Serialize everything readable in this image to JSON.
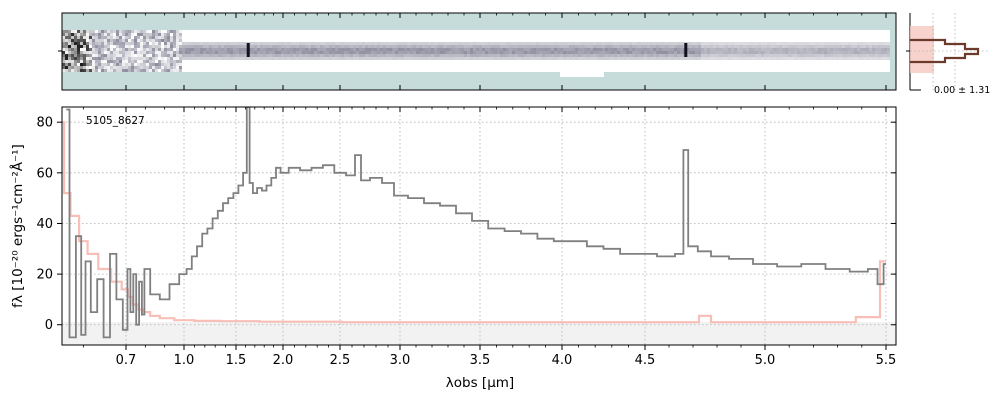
{
  "chart_data": [
    {
      "panel": "2d-spectrum",
      "type": "heatmap",
      "colors": {
        "background": "#c6dcda",
        "trace": "#2e2e4e",
        "noisy_edge": "#000000"
      },
      "emission_line_columns_um": [
        1.63,
        4.67
      ]
    },
    {
      "panel": "spatial-profile",
      "type": "line",
      "annotation": "0.00 ± 1.31",
      "colors": {
        "profile": "#6b3a2a",
        "fill": "#f6c8c0"
      }
    },
    {
      "panel": "1d-spectrum",
      "type": "line",
      "id_label": "5105_8627",
      "xlabel": "λobs [μm]",
      "ylabel": "fλ [10⁻²⁰ ergs⁻¹cm⁻²Å⁻¹]",
      "x_scale": "nonlinear (stretched at short wavelengths)",
      "xlim": [
        0.55,
        5.52
      ],
      "ylim": [
        -8,
        86
      ],
      "grid": true,
      "x_ticks": [
        "0.7",
        "1.0",
        "1.5",
        "2.0",
        "2.5",
        "3.0",
        "3.5",
        "4.0",
        "4.5",
        "5.0",
        "5.5"
      ],
      "y_ticks": [
        "0",
        "20",
        "40",
        "60",
        "80"
      ],
      "colors": {
        "flux": "#808080",
        "error": "#f6b8b0",
        "zero_band": "#f2f2f2"
      },
      "series": [
        {
          "name": "",
          "role": "flux",
          "x": [
            0.56,
            0.575,
            0.59,
            0.6,
            0.61,
            0.625,
            0.64,
            0.655,
            0.67,
            0.685,
            0.7,
            0.715,
            0.73,
            0.745,
            0.76,
            0.775,
            0.79,
            0.8,
            0.85,
            0.9,
            0.95,
            1.0,
            1.05,
            1.1,
            1.15,
            1.2,
            1.25,
            1.3,
            1.35,
            1.4,
            1.45,
            1.5,
            1.55,
            1.6,
            1.63,
            1.66,
            1.7,
            1.75,
            1.8,
            1.85,
            1.9,
            1.95,
            2.0,
            2.1,
            2.2,
            2.3,
            2.4,
            2.5,
            2.6,
            2.65,
            2.7,
            2.8,
            2.9,
            3.0,
            3.1,
            3.2,
            3.3,
            3.4,
            3.5,
            3.6,
            3.7,
            3.8,
            3.9,
            4.0,
            4.1,
            4.2,
            4.3,
            4.4,
            4.5,
            4.6,
            4.65,
            4.67,
            4.69,
            4.75,
            4.8,
            4.9,
            5.0,
            5.1,
            5.2,
            5.3,
            5.4,
            5.45,
            5.48,
            5.5
          ],
          "y": [
            85,
            -5,
            35,
            -4,
            25,
            5,
            18,
            -5,
            28,
            10,
            -2,
            22,
            5,
            20,
            0,
            17,
            4,
            22,
            12,
            10,
            16,
            20,
            22,
            27,
            31,
            36,
            38,
            42,
            45,
            48,
            50,
            52,
            55,
            60,
            86,
            56,
            52,
            54,
            53,
            55,
            58,
            62,
            60,
            62,
            61,
            62,
            63,
            60,
            59,
            67,
            57,
            58,
            56,
            51,
            50,
            48,
            47,
            44,
            41,
            38,
            37,
            36,
            34,
            33,
            33,
            31,
            30,
            28,
            28,
            27,
            28,
            69,
            31,
            29,
            27,
            26,
            24,
            23,
            24,
            22,
            21,
            22,
            16,
            24
          ]
        },
        {
          "name": "",
          "role": "error",
          "x": [
            0.55,
            0.56,
            0.58,
            0.6,
            0.62,
            0.65,
            0.68,
            0.7,
            0.72,
            0.75,
            0.78,
            0.8,
            0.85,
            0.9,
            1.0,
            1.2,
            1.5,
            2.0,
            3.0,
            4.0,
            4.6,
            4.7,
            4.75,
            4.8,
            4.9,
            5.0,
            5.3,
            5.45,
            5.5
          ],
          "y": [
            80,
            52,
            43,
            33,
            28,
            22,
            17,
            14,
            11,
            8,
            6,
            5,
            3.5,
            2.6,
            1.8,
            1.5,
            1.4,
            1.2,
            1.0,
            1.0,
            1.0,
            1.0,
            3.5,
            1.0,
            1.0,
            1.0,
            1.0,
            3,
            25
          ]
        }
      ]
    }
  ]
}
